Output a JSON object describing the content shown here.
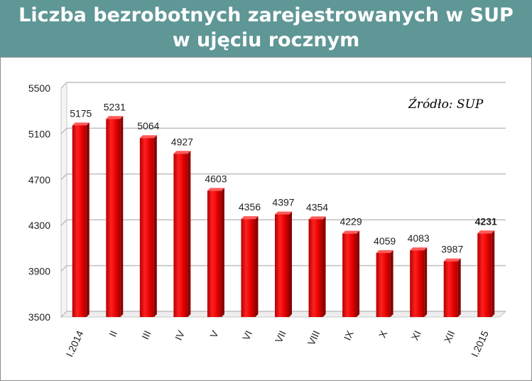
{
  "header": {
    "line1": "Liczba bezrobotnych zarejestrowanych w SUP",
    "line2": "w ujęciu rocznym"
  },
  "source_note": "Źródło: SUP",
  "colors": {
    "header_bg": "#5f9696",
    "bar": "#ee0000",
    "grid": "#bfbfbf"
  },
  "chart_data": {
    "type": "bar",
    "title": "Liczba bezrobotnych zarejestrowanych w SUP w ujęciu rocznym",
    "categories": [
      "I.2014",
      "II",
      "III",
      "IV",
      "V",
      "VI",
      "VII",
      "VIII",
      "IX",
      "X",
      "XI",
      "XII",
      "I.2015"
    ],
    "values": [
      5175,
      5231,
      5064,
      4927,
      4603,
      4356,
      4397,
      4354,
      4229,
      4059,
      4083,
      3987,
      4231
    ],
    "data_labels": [
      "5175",
      "5231",
      "5064",
      "4927",
      "4603",
      "4356",
      "4397",
      "4354",
      "4229",
      "4059",
      "4083",
      "3987",
      "4231"
    ],
    "highlighted_label_index": 12,
    "ylim": [
      3500,
      5500
    ],
    "yticks": [
      3500,
      3900,
      4300,
      4700,
      5100,
      5500
    ],
    "ytick_labels": [
      "3500",
      "3900",
      "4300",
      "4700",
      "5100",
      "5500"
    ],
    "grid": true,
    "style": "3d-bars"
  }
}
